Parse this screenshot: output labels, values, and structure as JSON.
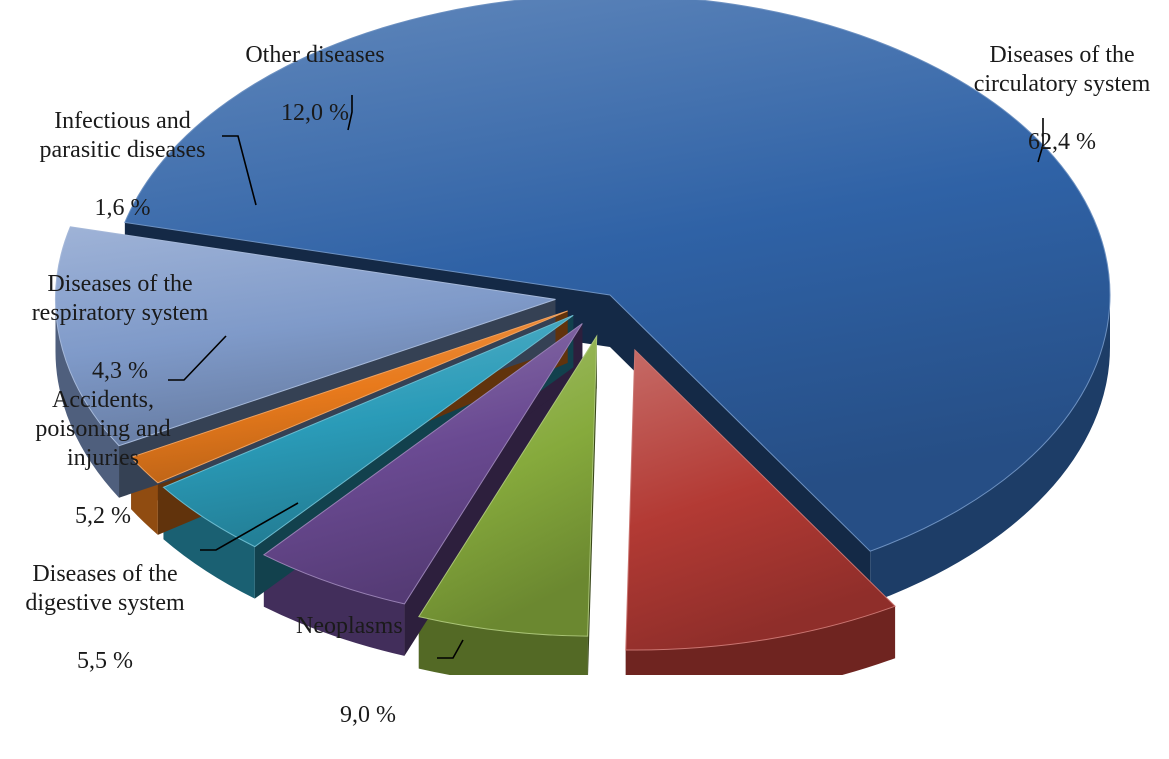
{
  "chart_data": {
    "type": "pie",
    "variant": "3d-exploded",
    "title": "",
    "legend": "none",
    "slices": [
      {
        "label": "Diseases of the\ncirculatory system",
        "value": 62.4,
        "value_label": "62,4 %",
        "color": "#2f62a6"
      },
      {
        "label": "Neoplasms",
        "value": 9.0,
        "value_label": "9,0 %",
        "color": "#b33a34"
      },
      {
        "label": "Diseases of the\ndigestive system",
        "value": 5.5,
        "value_label": "5,5 %",
        "color": "#86aa3c"
      },
      {
        "label": "Accidents,\npoisoning and\ninjuries",
        "value": 5.2,
        "value_label": "5,2 %",
        "color": "#6a4a92"
      },
      {
        "label": "Diseases of the\nrespiratory system",
        "value": 4.3,
        "value_label": "4,3 %",
        "color": "#2a9bb8"
      },
      {
        "label": "Infectious and\nparasitic diseases",
        "value": 1.6,
        "value_label": "1,6 %",
        "color": "#e87a1c"
      },
      {
        "label": "Other diseases",
        "value": 12.0,
        "value_label": "12,0 %",
        "color": "#7f9ac9"
      }
    ]
  }
}
